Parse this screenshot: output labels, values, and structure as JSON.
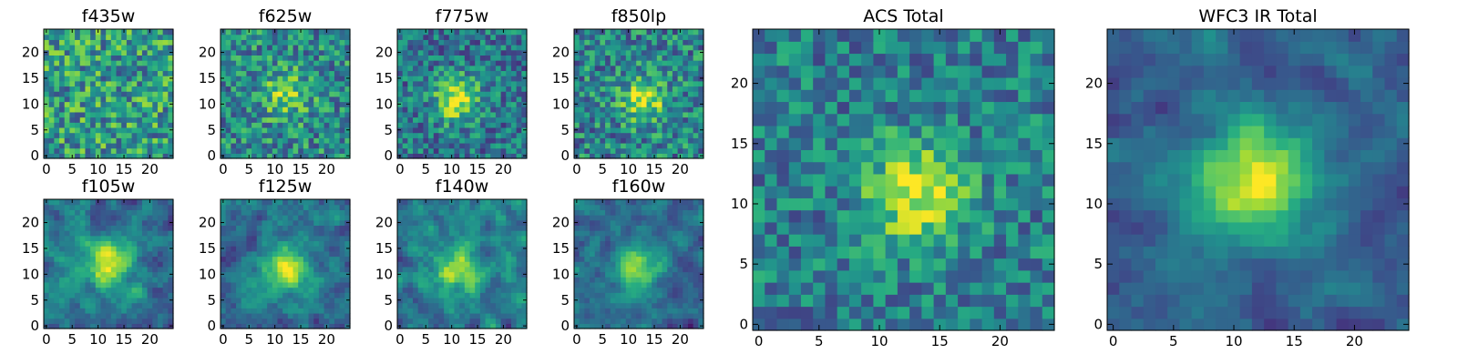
{
  "chart_data": [
    {
      "type": "heatmap",
      "title": "f435w",
      "xticks": [
        "0",
        "5",
        "10",
        "15",
        "20"
      ],
      "yticks": [
        "0",
        "5",
        "10",
        "15",
        "20"
      ],
      "xlim": [
        0,
        25
      ],
      "ylim": [
        0,
        25
      ],
      "grid": "25x25 pixels",
      "colormap": "viridis",
      "source_center": null
    },
    {
      "type": "heatmap",
      "title": "f625w",
      "xticks": [
        "0",
        "5",
        "10",
        "15",
        "20"
      ],
      "yticks": [
        "0",
        "5",
        "10",
        "15",
        "20"
      ],
      "xlim": [
        0,
        25
      ],
      "ylim": [
        0,
        25
      ],
      "grid": "25x25 pixels",
      "colormap": "viridis",
      "source_center": [
        12,
        12
      ]
    },
    {
      "type": "heatmap",
      "title": "f775w",
      "xticks": [
        "0",
        "5",
        "10",
        "15",
        "20"
      ],
      "yticks": [
        "0",
        "5",
        "10",
        "15",
        "20"
      ],
      "xlim": [
        0,
        25
      ],
      "ylim": [
        0,
        25
      ],
      "grid": "25x25 pixels",
      "colormap": "viridis",
      "source_center": [
        11,
        11
      ]
    },
    {
      "type": "heatmap",
      "title": "f850lp",
      "xticks": [
        "0",
        "5",
        "10",
        "15",
        "20"
      ],
      "yticks": [
        "0",
        "5",
        "10",
        "15",
        "20"
      ],
      "xlim": [
        0,
        25
      ],
      "ylim": [
        0,
        25
      ],
      "grid": "25x25 pixels",
      "colormap": "viridis",
      "source_center": [
        13,
        11
      ]
    },
    {
      "type": "heatmap",
      "title": "f105w",
      "xticks": [
        "0",
        "5",
        "10",
        "15",
        "20"
      ],
      "yticks": [
        "0",
        "5",
        "10",
        "15",
        "20"
      ],
      "xlim": [
        0,
        25
      ],
      "ylim": [
        0,
        25
      ],
      "grid": "25x25 pixels",
      "colormap": "viridis",
      "source_center": [
        12,
        12
      ]
    },
    {
      "type": "heatmap",
      "title": "f125w",
      "xticks": [
        "0",
        "5",
        "10",
        "15",
        "20"
      ],
      "yticks": [
        "0",
        "5",
        "10",
        "15",
        "20"
      ],
      "xlim": [
        0,
        25
      ],
      "ylim": [
        0,
        25
      ],
      "grid": "25x25 pixels",
      "colormap": "viridis",
      "source_center": [
        12,
        11
      ]
    },
    {
      "type": "heatmap",
      "title": "f140w",
      "xticks": [
        "0",
        "5",
        "10",
        "15",
        "20"
      ],
      "yticks": [
        "0",
        "5",
        "10",
        "15",
        "20"
      ],
      "xlim": [
        0,
        25
      ],
      "ylim": [
        0,
        25
      ],
      "grid": "25x25 pixels",
      "colormap": "viridis",
      "source_center": [
        11,
        11
      ]
    },
    {
      "type": "heatmap",
      "title": "f160w",
      "xticks": [
        "0",
        "5",
        "10",
        "15",
        "20"
      ],
      "yticks": [
        "0",
        "5",
        "10",
        "15",
        "20"
      ],
      "xlim": [
        0,
        25
      ],
      "ylim": [
        0,
        25
      ],
      "grid": "25x25 pixels",
      "colormap": "viridis",
      "source_center": [
        12,
        11
      ]
    },
    {
      "type": "heatmap",
      "title": "ACS Total",
      "xticks": [
        "0",
        "5",
        "10",
        "15",
        "20"
      ],
      "yticks": [
        "0",
        "5",
        "10",
        "15",
        "20"
      ],
      "xlim": [
        0,
        25
      ],
      "ylim": [
        0,
        25
      ],
      "grid": "25x25 pixels",
      "colormap": "viridis",
      "source_center": [
        13,
        11
      ]
    },
    {
      "type": "heatmap",
      "title": "WFC3 IR Total",
      "xticks": [
        "0",
        "5",
        "10",
        "15",
        "20"
      ],
      "yticks": [
        "0",
        "5",
        "10",
        "15",
        "20"
      ],
      "xlim": [
        0,
        25
      ],
      "ylim": [
        0,
        25
      ],
      "grid": "25x25 pixels",
      "colormap": "viridis",
      "source_center": [
        12,
        12
      ]
    }
  ]
}
